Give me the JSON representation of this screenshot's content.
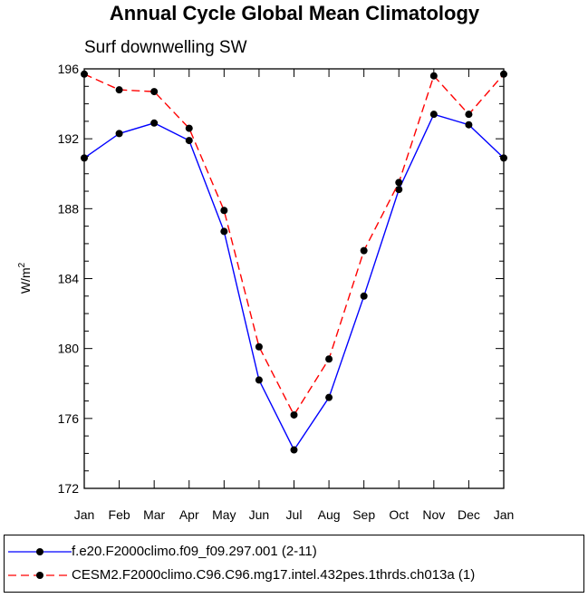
{
  "chart_data": {
    "type": "line",
    "title": "Annual Cycle Global Mean Climatology",
    "subtitle": "Surf downwelling SW",
    "ylabel_base": "W/m",
    "ylabel_sup": "2",
    "xlabel": "",
    "categories": [
      "Jan",
      "Feb",
      "Mar",
      "Apr",
      "May",
      "Jun",
      "Jul",
      "Aug",
      "Sep",
      "Oct",
      "Nov",
      "Dec",
      "Jan"
    ],
    "ylim": [
      172,
      196
    ],
    "yticks": [
      172,
      176,
      180,
      184,
      188,
      192,
      196
    ],
    "series": [
      {
        "name": "f.e20.F2000climo.f09_f09.297.001 (2-11)",
        "color": "#0000ff",
        "dash": "solid",
        "values": [
          190.9,
          192.3,
          192.9,
          191.9,
          186.7,
          178.2,
          174.2,
          177.2,
          183.0,
          189.1,
          193.4,
          192.8,
          190.9
        ]
      },
      {
        "name": "CESM2.F2000climo.C96.C96.mg17.intel.432pes.1thrds.ch013a (1)",
        "color": "#ff0000",
        "dash": "dashed",
        "values": [
          195.7,
          194.8,
          194.7,
          192.6,
          187.9,
          180.1,
          176.2,
          179.4,
          185.6,
          189.5,
          195.6,
          193.4,
          195.7
        ]
      }
    ]
  }
}
